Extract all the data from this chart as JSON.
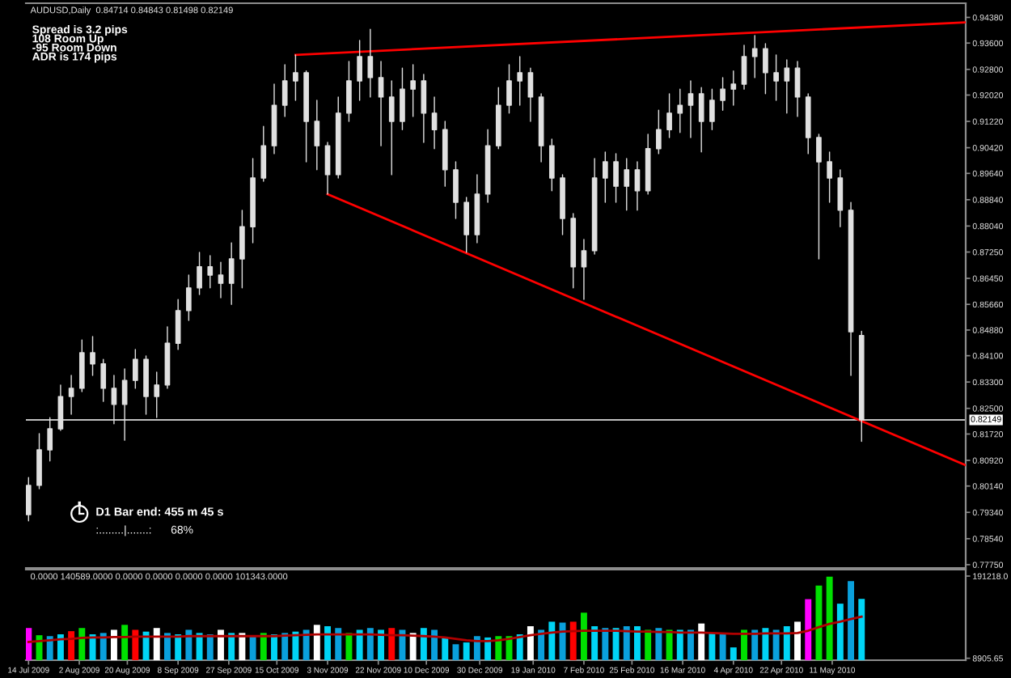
{
  "chart_data": [
    {
      "type": "candlestick",
      "title": "AUDUSD,Daily  0.84714 0.84843 0.81498 0.82149",
      "color": "#e0e0e0",
      "annotations": [
        "Spread is 3.2 pips",
        "108 Room Up",
        "-95 Room Down",
        "ADR is 174 pips",
        "D1 Bar end: 455 m 45 s",
        ":........|.......:",
        "68%"
      ],
      "x": [
        "2009-07-14",
        "2009-07-18",
        "2009-07-22",
        "2009-07-26",
        "2009-07-30",
        "2009-08-03",
        "2009-08-07",
        "2009-08-11",
        "2009-08-15",
        "2009-08-19",
        "2009-08-23",
        "2009-08-27",
        "2009-08-31",
        "2009-09-04",
        "2009-09-08",
        "2009-09-12",
        "2009-09-16",
        "2009-09-20",
        "2009-09-24",
        "2009-09-28",
        "2009-10-02",
        "2009-10-06",
        "2009-10-10",
        "2009-10-14",
        "2009-10-18",
        "2009-10-22",
        "2009-10-26",
        "2009-10-30",
        "2009-11-03",
        "2009-11-07",
        "2009-11-11",
        "2009-11-15",
        "2009-11-19",
        "2009-11-23",
        "2009-11-27",
        "2009-12-01",
        "2009-12-05",
        "2009-12-09",
        "2009-12-13",
        "2009-12-17",
        "2009-12-21",
        "2009-12-25",
        "2009-12-29",
        "2010-01-02",
        "2010-01-06",
        "2010-01-10",
        "2010-01-14",
        "2010-01-18",
        "2010-01-22",
        "2010-01-26",
        "2010-01-30",
        "2010-02-03",
        "2010-02-07",
        "2010-02-11",
        "2010-02-15",
        "2010-02-19",
        "2010-02-23",
        "2010-02-27",
        "2010-03-03",
        "2010-03-07",
        "2010-03-11",
        "2010-03-15",
        "2010-03-19",
        "2010-03-23",
        "2010-03-27",
        "2010-03-31",
        "2010-04-04",
        "2010-04-08",
        "2010-04-12",
        "2010-04-16",
        "2010-04-20",
        "2010-04-24",
        "2010-04-28",
        "2010-05-02",
        "2010-05-06",
        "2010-05-10",
        "2010-05-14",
        "2010-05-18",
        "2010-05-22"
      ],
      "ohlc": [
        [
          0.7927,
          0.804,
          0.7908,
          0.8016
        ],
        [
          0.8016,
          0.8173,
          0.8006,
          0.8124
        ],
        [
          0.8124,
          0.8222,
          0.809,
          0.8188
        ],
        [
          0.8188,
          0.8321,
          0.8183,
          0.8286
        ],
        [
          0.8286,
          0.835,
          0.8232,
          0.8311
        ],
        [
          0.8311,
          0.8458,
          0.8301,
          0.8419
        ],
        [
          0.8419,
          0.8468,
          0.835,
          0.8385
        ],
        [
          0.8385,
          0.8399,
          0.8271,
          0.8311
        ],
        [
          0.8311,
          0.835,
          0.8203,
          0.8262
        ],
        [
          0.8262,
          0.837,
          0.8153,
          0.8335
        ],
        [
          0.8335,
          0.8429,
          0.8311,
          0.8399
        ],
        [
          0.8399,
          0.8409,
          0.8232,
          0.8286
        ],
        [
          0.8286,
          0.836,
          0.8222,
          0.8321
        ],
        [
          0.8321,
          0.8498,
          0.8311,
          0.8448
        ],
        [
          0.8448,
          0.8581,
          0.8429,
          0.8547
        ],
        [
          0.8547,
          0.8655,
          0.8517,
          0.8616
        ],
        [
          0.8616,
          0.8724,
          0.8596,
          0.868
        ],
        [
          0.868,
          0.8714,
          0.8616,
          0.8655
        ],
        [
          0.8655,
          0.8694,
          0.8586,
          0.863
        ],
        [
          0.863,
          0.8753,
          0.8566,
          0.8704
        ],
        [
          0.8704,
          0.8852,
          0.8616,
          0.8802
        ],
        [
          0.8802,
          0.9009,
          0.8753,
          0.895
        ],
        [
          0.895,
          0.9107,
          0.894,
          0.9048
        ],
        [
          0.9048,
          0.9235,
          0.9024,
          0.9171
        ],
        [
          0.9171,
          0.9294,
          0.9137,
          0.9245
        ],
        [
          0.9245,
          0.9324,
          0.9186,
          0.927
        ],
        [
          0.927,
          0.9275,
          0.8999,
          0.9122
        ],
        [
          0.9122,
          0.9186,
          0.8975,
          0.9048
        ],
        [
          0.9048,
          0.9058,
          0.8901,
          0.896
        ],
        [
          0.896,
          0.9196,
          0.895,
          0.9147
        ],
        [
          0.9147,
          0.9304,
          0.9122,
          0.9245
        ],
        [
          0.9245,
          0.9368,
          0.9186,
          0.9319
        ],
        [
          0.9319,
          0.9402,
          0.9196,
          0.9255
        ],
        [
          0.9255,
          0.9304,
          0.9048,
          0.9196
        ],
        [
          0.9196,
          0.9245,
          0.896,
          0.9122
        ],
        [
          0.9122,
          0.9284,
          0.9097,
          0.922
        ],
        [
          0.922,
          0.9294,
          0.9137,
          0.9245
        ],
        [
          0.9245,
          0.9265,
          0.9058,
          0.9147
        ],
        [
          0.9147,
          0.9196,
          0.9039,
          0.9097
        ],
        [
          0.9097,
          0.9122,
          0.8925,
          0.8975
        ],
        [
          0.8975,
          0.8999,
          0.8827,
          0.8876
        ],
        [
          0.8876,
          0.8891,
          0.8724,
          0.8778
        ],
        [
          0.8778,
          0.896,
          0.8753,
          0.8901
        ],
        [
          0.8901,
          0.9097,
          0.8876,
          0.9048
        ],
        [
          0.9048,
          0.9225,
          0.9039,
          0.9171
        ],
        [
          0.9171,
          0.9294,
          0.9147,
          0.9245
        ],
        [
          0.9245,
          0.9319,
          0.9171,
          0.927
        ],
        [
          0.927,
          0.9284,
          0.9122,
          0.9196
        ],
        [
          0.9196,
          0.9206,
          0.8999,
          0.9048
        ],
        [
          0.9048,
          0.9068,
          0.8911,
          0.895
        ],
        [
          0.895,
          0.896,
          0.8778,
          0.8827
        ],
        [
          0.8827,
          0.8842,
          0.8616,
          0.868
        ],
        [
          0.868,
          0.8763,
          0.8581,
          0.8729
        ],
        [
          0.8729,
          0.9009,
          0.8719,
          0.895
        ],
        [
          0.895,
          0.9029,
          0.8876,
          0.8999
        ],
        [
          0.8999,
          0.9024,
          0.8876,
          0.8925
        ],
        [
          0.8925,
          0.9009,
          0.8852,
          0.8975
        ],
        [
          0.8975,
          0.8999,
          0.8852,
          0.8911
        ],
        [
          0.8911,
          0.9083,
          0.8901,
          0.9039
        ],
        [
          0.9039,
          0.9156,
          0.9024,
          0.9097
        ],
        [
          0.9097,
          0.9206,
          0.9073,
          0.9147
        ],
        [
          0.9147,
          0.922,
          0.9088,
          0.9171
        ],
        [
          0.9171,
          0.9245,
          0.9073,
          0.9206
        ],
        [
          0.9206,
          0.9225,
          0.9029,
          0.9122
        ],
        [
          0.9122,
          0.922,
          0.9097,
          0.9186
        ],
        [
          0.9186,
          0.9255,
          0.9156,
          0.922
        ],
        [
          0.922,
          0.9275,
          0.9171,
          0.9235
        ],
        [
          0.9235,
          0.9353,
          0.922,
          0.9319
        ],
        [
          0.9319,
          0.9383,
          0.9255,
          0.9343
        ],
        [
          0.9343,
          0.9358,
          0.9206,
          0.927
        ],
        [
          0.927,
          0.9324,
          0.9186,
          0.9245
        ],
        [
          0.9245,
          0.9309,
          0.9147,
          0.9284
        ],
        [
          0.9284,
          0.9304,
          0.9137,
          0.9196
        ],
        [
          0.9196,
          0.9206,
          0.9024,
          0.9073
        ],
        [
          0.9073,
          0.9083,
          0.8704,
          0.8999
        ],
        [
          0.8999,
          0.9029,
          0.8876,
          0.895
        ],
        [
          0.895,
          0.8975,
          0.8802,
          0.8852
        ],
        [
          0.8852,
          0.8876,
          0.835,
          0.8483
        ],
        [
          0.84714,
          0.84843,
          0.81498,
          0.82149
        ]
      ],
      "series": [
        {
          "type": "line",
          "color": "#ff0000",
          "x": [
            "2009-10-22",
            "2010-06-30"
          ],
          "values": [
            0.9324,
            0.9423
          ]
        },
        {
          "type": "line",
          "color": "#ff0000",
          "x": [
            "2009-11-03",
            "2010-06-30"
          ],
          "values": [
            0.8901,
            0.8077
          ]
        }
      ],
      "ref_lines": [
        {
          "axis": "y",
          "value": 0.82149,
          "label": "0.82149",
          "color": "#c0c0c0"
        }
      ],
      "xlim": [
        "2009-07-13",
        "2010-06-30"
      ],
      "ylim": [
        0.7765,
        0.9481
      ],
      "yticks": [
        {
          "value": 0.9438,
          "label": "0.94380"
        },
        {
          "value": 0.936,
          "label": "0.93600"
        },
        {
          "value": 0.928,
          "label": "0.92800"
        },
        {
          "value": 0.9202,
          "label": "0.92020"
        },
        {
          "value": 0.9122,
          "label": "0.91220"
        },
        {
          "value": 0.9042,
          "label": "0.90420"
        },
        {
          "value": 0.8964,
          "label": "0.89640"
        },
        {
          "value": 0.8884,
          "label": "0.88840"
        },
        {
          "value": 0.8804,
          "label": "0.88040"
        },
        {
          "value": 0.8725,
          "label": "0.87250"
        },
        {
          "value": 0.8645,
          "label": "0.86450"
        },
        {
          "value": 0.8566,
          "label": "0.85660"
        },
        {
          "value": 0.8488,
          "label": "0.84880"
        },
        {
          "value": 0.841,
          "label": "0.84100"
        },
        {
          "value": 0.833,
          "label": "0.83300"
        },
        {
          "value": 0.825,
          "label": "0.82500"
        },
        {
          "value": 0.8172,
          "label": "0.81720"
        },
        {
          "value": 0.8092,
          "label": "0.80920"
        },
        {
          "value": 0.8014,
          "label": "0.80140"
        },
        {
          "value": 0.7934,
          "label": "0.79340"
        },
        {
          "value": 0.7854,
          "label": "0.78540"
        },
        {
          "value": 0.7775,
          "label": "0.77750"
        }
      ],
      "tick_labels": "y"
    },
    {
      "type": "bar",
      "title": "0.0000 140589.0000 0.0000 0.0000 0.0000 0.0000 101343.0000",
      "x": [
        "2009-07-14",
        "2009-07-18",
        "2009-07-22",
        "2009-07-26",
        "2009-07-30",
        "2009-08-03",
        "2009-08-07",
        "2009-08-11",
        "2009-08-15",
        "2009-08-19",
        "2009-08-23",
        "2009-08-27",
        "2009-08-31",
        "2009-09-04",
        "2009-09-08",
        "2009-09-12",
        "2009-09-16",
        "2009-09-20",
        "2009-09-24",
        "2009-09-28",
        "2009-10-02",
        "2009-10-06",
        "2009-10-10",
        "2009-10-14",
        "2009-10-18",
        "2009-10-22",
        "2009-10-26",
        "2009-10-30",
        "2009-11-03",
        "2009-11-07",
        "2009-11-11",
        "2009-11-15",
        "2009-11-19",
        "2009-11-23",
        "2009-11-27",
        "2009-12-01",
        "2009-12-05",
        "2009-12-09",
        "2009-12-13",
        "2009-12-17",
        "2009-12-21",
        "2009-12-25",
        "2009-12-29",
        "2010-01-02",
        "2010-01-06",
        "2010-01-10",
        "2010-01-14",
        "2010-01-18",
        "2010-01-22",
        "2010-01-26",
        "2010-01-30",
        "2010-02-03",
        "2010-02-07",
        "2010-02-11",
        "2010-02-15",
        "2010-02-19",
        "2010-02-23",
        "2010-02-27",
        "2010-03-03",
        "2010-03-07",
        "2010-03-11",
        "2010-03-15",
        "2010-03-19",
        "2010-03-23",
        "2010-03-27",
        "2010-03-31",
        "2010-04-04",
        "2010-04-08",
        "2010-04-12",
        "2010-04-16",
        "2010-04-20",
        "2010-04-24",
        "2010-04-28",
        "2010-05-02",
        "2010-05-06",
        "2010-05-10",
        "2010-05-14",
        "2010-05-18",
        "2010-05-22"
      ],
      "series": [
        {
          "type": "bar",
          "values": [
            76000,
            60000,
            58000,
            62000,
            69000,
            76000,
            62000,
            65000,
            72000,
            83000,
            72000,
            68000,
            76000,
            65000,
            62000,
            72000,
            65000,
            62000,
            72000,
            65000,
            65000,
            58000,
            65000,
            62000,
            65000,
            68000,
            72000,
            83000,
            80000,
            76000,
            65000,
            72000,
            76000,
            72000,
            76000,
            72000,
            65000,
            76000,
            72000,
            55000,
            40000,
            44000,
            58000,
            55000,
            58000,
            58000,
            62000,
            80000,
            72000,
            90000,
            88000,
            90000,
            110000,
            80000,
            76000,
            76000,
            80000,
            80000,
            72000,
            76000,
            72000,
            72000,
            72000,
            86000,
            65000,
            62000,
            33000,
            72000,
            72000,
            76000,
            72000,
            80000,
            90000,
            140000,
            170000,
            190000,
            130000,
            180000,
            140589
          ],
          "colors": [
            "#ff00ff",
            "#00e000",
            "#0aa0dc",
            "#00d4f5",
            "#ff0000",
            "#00e000",
            "#00d4f5",
            "#0aa0dc",
            "#ffffff",
            "#00e000",
            "#ff0000",
            "#00d4f5",
            "#ffffff",
            "#0aa0dc",
            "#00d4f5",
            "#0aa0dc",
            "#00d4f5",
            "#0aa0dc",
            "#ffffff",
            "#00d4f5",
            "#ffffff",
            "#0aa0dc",
            "#00e000",
            "#00d4f5",
            "#0aa0dc",
            "#00d4f5",
            "#0aa0dc",
            "#ffffff",
            "#00d4f5",
            "#0aa0dc",
            "#00e000",
            "#00d4f5",
            "#0aa0dc",
            "#00d4f5",
            "#ff0000",
            "#0aa0dc",
            "#ffffff",
            "#00d4f5",
            "#0aa0dc",
            "#00d4f5",
            "#0aa0dc",
            "#00d4f5",
            "#0aa0dc",
            "#00d4f5",
            "#00e000",
            "#00e000",
            "#00d4f5",
            "#ffffff",
            "#0aa0dc",
            "#00d4f5",
            "#0aa0dc",
            "#ff0000",
            "#00e000",
            "#00d4f5",
            "#0aa0dc",
            "#00d4f5",
            "#0aa0dc",
            "#00d4f5",
            "#00e000",
            "#0aa0dc",
            "#00e000",
            "#00d4f5",
            "#0aa0dc",
            "#ffffff",
            "#00d4f5",
            "#0aa0dc",
            "#00d4f5",
            "#00e000",
            "#0aa0dc",
            "#00d4f5",
            "#0aa0dc",
            "#00d4f5",
            "#ffffff",
            "#ff00ff",
            "#00e000",
            "#00e000",
            "#00d4f5",
            "#0aa0dc",
            "#00d4f5"
          ]
        },
        {
          "type": "line",
          "color": "#b00000",
          "values": [
            45000,
            47000,
            49000,
            51000,
            52000,
            54000,
            55000,
            55000,
            56000,
            56000,
            57000,
            57000,
            57000,
            57000,
            57000,
            58000,
            58000,
            58000,
            58000,
            58000,
            58000,
            58000,
            58000,
            58000,
            59000,
            60000,
            61000,
            62000,
            62000,
            62000,
            62000,
            62000,
            62000,
            61000,
            60000,
            60000,
            59000,
            58000,
            57000,
            55000,
            52000,
            49000,
            47000,
            47000,
            49000,
            52000,
            56000,
            60000,
            63000,
            66000,
            68000,
            69000,
            70000,
            70000,
            70000,
            70000,
            69000,
            68000,
            68000,
            67000,
            67000,
            66000,
            66000,
            66000,
            65000,
            64000,
            63000,
            63000,
            63000,
            64000,
            64000,
            64000,
            65000,
            70000,
            78000,
            85000,
            90000,
            96000,
            101343
          ]
        }
      ],
      "xlim": [
        "2009-07-13",
        "2010-06-30"
      ],
      "ylim": [
        4600,
        205600
      ],
      "yticks": [
        {
          "value": 191218,
          "label": "191218.0"
        },
        {
          "value": 8905.65,
          "label": "8905.65"
        }
      ],
      "xticks": [
        {
          "value": "2009-07-14",
          "label": "14 Jul 2009"
        },
        {
          "value": "2009-08-02",
          "label": "2 Aug 2009"
        },
        {
          "value": "2009-08-20",
          "label": "20 Aug 2009"
        },
        {
          "value": "2009-09-08",
          "label": "8 Sep 2009"
        },
        {
          "value": "2009-09-27",
          "label": "27 Sep 2009"
        },
        {
          "value": "2009-10-15",
          "label": "15 Oct 2009"
        },
        {
          "value": "2009-11-03",
          "label": "3 Nov 2009"
        },
        {
          "value": "2009-11-22",
          "label": "22 Nov 2009"
        },
        {
          "value": "2009-12-10",
          "label": "10 Dec 2009"
        },
        {
          "value": "2009-12-30",
          "label": "30 Dec 2009"
        },
        {
          "value": "2010-01-19",
          "label": "19 Jan 2010"
        },
        {
          "value": "2010-02-07",
          "label": "7 Feb 2010"
        },
        {
          "value": "2010-02-25",
          "label": "25 Feb 2010"
        },
        {
          "value": "2010-03-16",
          "label": "16 Mar 2010"
        },
        {
          "value": "2010-04-04",
          "label": "4 Apr 2010"
        },
        {
          "value": "2010-04-22",
          "label": "22 Apr 2010"
        },
        {
          "value": "2010-05-11",
          "label": "11 May 2010"
        }
      ]
    }
  ]
}
